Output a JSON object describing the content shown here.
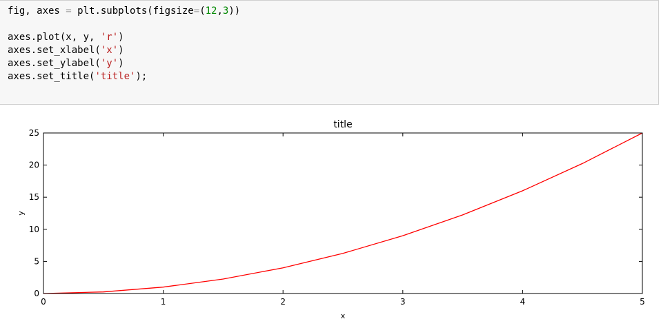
{
  "code_cell": {
    "lines": [
      [
        {
          "t": "fig, axes "
        },
        {
          "t": "=",
          "c": "op"
        },
        {
          "t": " plt.subplots(figsize"
        },
        {
          "t": "=",
          "c": "op"
        },
        {
          "t": "("
        },
        {
          "t": "12",
          "c": "num"
        },
        {
          "t": ","
        },
        {
          "t": "3",
          "c": "num"
        },
        {
          "t": "))"
        }
      ],
      [],
      [
        {
          "t": "axes.plot(x, y, "
        },
        {
          "t": "'r'",
          "c": "str"
        },
        {
          "t": ")"
        }
      ],
      [
        {
          "t": "axes.set_xlabel("
        },
        {
          "t": "'x'",
          "c": "str"
        },
        {
          "t": ")"
        }
      ],
      [
        {
          "t": "axes.set_ylabel("
        },
        {
          "t": "'y'",
          "c": "str"
        },
        {
          "t": ")"
        }
      ],
      [
        {
          "t": "axes.set_title("
        },
        {
          "t": "'title'",
          "c": "str"
        },
        {
          "t": ");"
        }
      ]
    ]
  },
  "chart_data": {
    "type": "line",
    "title": "title",
    "xlabel": "x",
    "ylabel": "y",
    "xlim": [
      0,
      5
    ],
    "ylim": [
      0,
      25
    ],
    "xticks": [
      0,
      1,
      2,
      3,
      4,
      5
    ],
    "yticks": [
      0,
      5,
      10,
      15,
      20,
      25
    ],
    "grid": false,
    "color": "#ff0000",
    "x": [
      0,
      0.5,
      1,
      1.5,
      2,
      2.5,
      3,
      3.5,
      4,
      4.5,
      5
    ],
    "y": [
      0,
      0.25,
      1,
      2.25,
      4,
      6.25,
      9,
      12.25,
      16,
      20.25,
      25
    ]
  }
}
